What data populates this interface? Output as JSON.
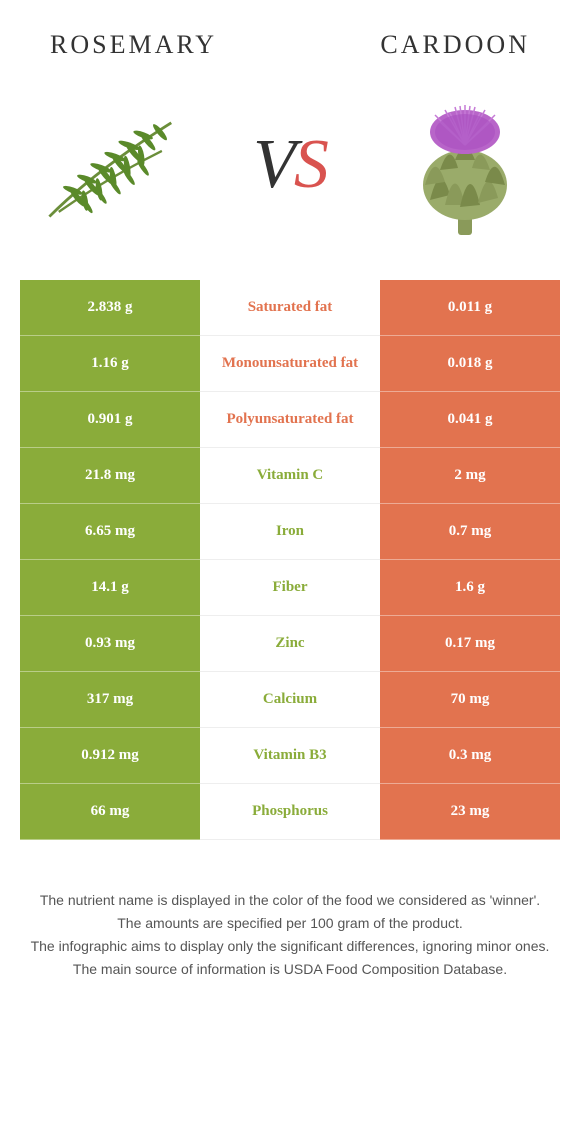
{
  "titles": {
    "left": "ROSEMARY",
    "right": "CARDOON"
  },
  "vs": {
    "v": "V",
    "s": "S"
  },
  "colors": {
    "left_bg": "#8aac3a",
    "right_bg": "#e2734f",
    "mid_bg": "#ffffff",
    "left_text": "#8aac3a",
    "right_text": "#e2734f",
    "title_text": "#333333",
    "footer_text": "#555555"
  },
  "rows": [
    {
      "left": "2.838 g",
      "label": "Saturated fat",
      "right": "0.011 g",
      "winner": "right"
    },
    {
      "left": "1.16 g",
      "label": "Monounsaturated fat",
      "right": "0.018 g",
      "winner": "right"
    },
    {
      "left": "0.901 g",
      "label": "Polyunsaturated fat",
      "right": "0.041 g",
      "winner": "right"
    },
    {
      "left": "21.8 mg",
      "label": "Vitamin C",
      "right": "2 mg",
      "winner": "left"
    },
    {
      "left": "6.65 mg",
      "label": "Iron",
      "right": "0.7 mg",
      "winner": "left"
    },
    {
      "left": "14.1 g",
      "label": "Fiber",
      "right": "1.6 g",
      "winner": "left"
    },
    {
      "left": "0.93 mg",
      "label": "Zinc",
      "right": "0.17 mg",
      "winner": "left"
    },
    {
      "left": "317 mg",
      "label": "Calcium",
      "right": "70 mg",
      "winner": "left"
    },
    {
      "left": "0.912 mg",
      "label": "Vitamin B3",
      "right": "0.3 mg",
      "winner": "left"
    },
    {
      "left": "66 mg",
      "label": "Phosphorus",
      "right": "23 mg",
      "winner": "left"
    }
  ],
  "footer": [
    "The nutrient name is displayed in the color of the food we considered as 'winner'.",
    "The amounts are specified per 100 gram of the product.",
    "The infographic aims to display only the significant differences, ignoring minor ones.",
    "The main source of information is USDA Food Composition Database."
  ]
}
